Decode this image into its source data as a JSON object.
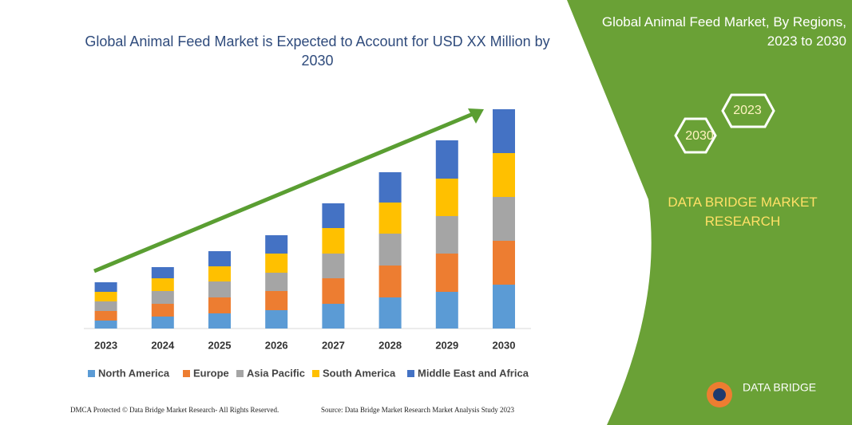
{
  "chart_data": {
    "type": "stacked-bar",
    "title": "Global Animal Feed Market is Expected to Account for USD XX Million by 2030",
    "categories": [
      "2023",
      "2024",
      "2025",
      "2026",
      "2027",
      "2028",
      "2029",
      "2030"
    ],
    "series": [
      {
        "name": "North America",
        "color": "#5b9bd5",
        "values": [
          10,
          15,
          19,
          23,
          31,
          39,
          46,
          55
        ]
      },
      {
        "name": "Europe",
        "color": "#ed7d31",
        "values": [
          12,
          16,
          20,
          24,
          32,
          40,
          48,
          55
        ]
      },
      {
        "name": "Asia Pacific",
        "color": "#a5a5a5",
        "values": [
          12,
          16,
          20,
          23,
          31,
          40,
          47,
          55
        ]
      },
      {
        "name": "South America",
        "color": "#ffc000",
        "values": [
          12,
          16,
          19,
          24,
          32,
          39,
          47,
          55
        ]
      },
      {
        "name": "Middle East and Africa",
        "color": "#4472c4",
        "values": [
          12,
          14,
          19,
          23,
          31,
          38,
          48,
          55
        ]
      }
    ]
  },
  "panel": {
    "title": "Global Animal Feed Market, By Regions, 2023 to 2030",
    "hex_start": "2023",
    "hex_end": "2030",
    "brand": "DATA BRIDGE MARKET RESEARCH"
  },
  "logo": {
    "text": "DATA BRIDGE"
  },
  "footer": {
    "left": "DMCA Protected © Data Bridge Market Research- All Rights Reserved.",
    "right": "Source: Data Bridge Market Research Market Analysis Study 2023"
  }
}
